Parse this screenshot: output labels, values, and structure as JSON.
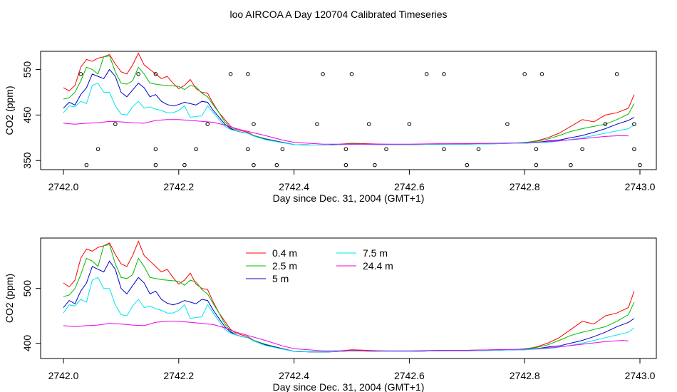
{
  "title": "loo AIRCOA A  Day 120704  Calibrated Timeseries",
  "colors": {
    "h04": "#ff0000",
    "h25": "#00bb00",
    "h5": "#0000cc",
    "h75": "#00e5ee",
    "h244": "#ee00ee",
    "axis": "#000000"
  },
  "chart_data": [
    {
      "type": "line",
      "xlabel": "Day since Dec. 31, 2004 (GMT+1)",
      "ylabel": "CO2 (ppm)",
      "xlim": [
        2742.0,
        2743.0
      ],
      "ylim": [
        330,
        590
      ],
      "xticks": [
        2742.0,
        2742.2,
        2742.4,
        2742.6,
        2742.8,
        2743.0
      ],
      "xtick_labels": [
        "2742.0",
        "2742.2",
        "2742.4",
        "2742.6",
        "2742.8",
        "2743.0"
      ],
      "yticks": [
        350,
        450,
        550
      ],
      "ytick_labels": [
        "350",
        "450",
        "550"
      ],
      "grid": false,
      "legend": "none",
      "series": [
        {
          "color": "#ff0000",
          "x": [
            2742.0,
            2742.01,
            2742.02,
            2742.03,
            2742.04,
            2742.05,
            2742.06,
            2742.07,
            2742.08,
            2742.09,
            2742.1,
            2742.11,
            2742.12,
            2742.13,
            2742.14,
            2742.15,
            2742.16,
            2742.17,
            2742.18,
            2742.19,
            2742.2,
            2742.21,
            2742.22,
            2742.23,
            2742.24,
            2742.25,
            2742.26,
            2742.27,
            2742.28,
            2742.29,
            2742.3,
            2742.31,
            2742.32,
            2742.33,
            2742.35,
            2742.38,
            2742.4,
            2742.43,
            2742.46,
            2742.48,
            2742.5,
            2742.55,
            2742.6,
            2742.65,
            2742.7,
            2742.75,
            2742.78,
            2742.8,
            2742.82,
            2742.84,
            2742.86,
            2742.88,
            2742.9,
            2742.92,
            2742.94,
            2742.96,
            2742.98,
            2742.99
          ],
          "y": [
            510,
            503,
            515,
            555,
            572,
            568,
            575,
            578,
            583,
            562,
            545,
            540,
            560,
            586,
            560,
            550,
            540,
            530,
            535,
            520,
            508,
            515,
            528,
            508,
            500,
            498,
            475,
            455,
            440,
            425,
            418,
            415,
            412,
            405,
            398,
            390,
            385,
            384,
            384,
            386,
            388,
            386,
            385,
            386,
            387,
            388,
            388,
            389,
            393,
            400,
            410,
            425,
            440,
            435,
            450,
            455,
            465,
            495
          ]
        },
        {
          "color": "#00bb00",
          "x": [
            2742.0,
            2742.01,
            2742.02,
            2742.03,
            2742.04,
            2742.05,
            2742.06,
            2742.07,
            2742.08,
            2742.09,
            2742.1,
            2742.11,
            2742.12,
            2742.13,
            2742.14,
            2742.15,
            2742.16,
            2742.17,
            2742.18,
            2742.19,
            2742.2,
            2742.21,
            2742.22,
            2742.23,
            2742.24,
            2742.25,
            2742.26,
            2742.27,
            2742.28,
            2742.29,
            2742.3,
            2742.31,
            2742.32,
            2742.33,
            2742.35,
            2742.38,
            2742.4,
            2742.43,
            2742.46,
            2742.48,
            2742.5,
            2742.55,
            2742.6,
            2742.65,
            2742.7,
            2742.75,
            2742.78,
            2742.8,
            2742.82,
            2742.84,
            2742.86,
            2742.88,
            2742.9,
            2742.92,
            2742.94,
            2742.96,
            2742.98,
            2742.99
          ],
          "y": [
            485,
            488,
            500,
            525,
            555,
            550,
            540,
            578,
            580,
            545,
            520,
            518,
            525,
            555,
            540,
            520,
            518,
            516,
            515,
            514,
            513,
            506,
            515,
            512,
            498,
            490,
            472,
            455,
            435,
            422,
            415,
            412,
            410,
            405,
            398,
            390,
            385,
            384,
            384,
            385,
            387,
            385,
            385,
            386,
            387,
            388,
            388,
            390,
            392,
            397,
            405,
            414,
            420,
            425,
            430,
            440,
            452,
            475
          ]
        },
        {
          "color": "#0000cc",
          "x": [
            2742.0,
            2742.01,
            2742.02,
            2742.03,
            2742.04,
            2742.05,
            2742.06,
            2742.07,
            2742.08,
            2742.09,
            2742.1,
            2742.11,
            2742.12,
            2742.13,
            2742.14,
            2742.15,
            2742.16,
            2742.17,
            2742.18,
            2742.19,
            2742.2,
            2742.21,
            2742.22,
            2742.23,
            2742.24,
            2742.25,
            2742.26,
            2742.27,
            2742.28,
            2742.29,
            2742.3,
            2742.31,
            2742.32,
            2742.33,
            2742.35,
            2742.38,
            2742.4,
            2742.43,
            2742.46,
            2742.48,
            2742.5,
            2742.55,
            2742.6,
            2742.65,
            2742.7,
            2742.75,
            2742.78,
            2742.8,
            2742.82,
            2742.84,
            2742.86,
            2742.88,
            2742.9,
            2742.92,
            2742.94,
            2742.96,
            2742.98,
            2742.99
          ],
          "y": [
            465,
            478,
            472,
            495,
            510,
            540,
            535,
            530,
            550,
            535,
            500,
            490,
            505,
            520,
            510,
            490,
            495,
            480,
            473,
            470,
            473,
            478,
            475,
            472,
            480,
            478,
            460,
            445,
            430,
            420,
            415,
            412,
            410,
            404,
            397,
            390,
            385,
            384,
            384,
            385,
            386,
            385,
            385,
            386,
            386,
            387,
            388,
            388,
            390,
            393,
            395,
            400,
            405,
            412,
            420,
            430,
            438,
            445
          ]
        },
        {
          "color": "#00e5ee",
          "x": [
            2742.0,
            2742.01,
            2742.02,
            2742.03,
            2742.04,
            2742.05,
            2742.06,
            2742.07,
            2742.08,
            2742.09,
            2742.1,
            2742.11,
            2742.12,
            2742.13,
            2742.14,
            2742.15,
            2742.16,
            2742.17,
            2742.18,
            2742.19,
            2742.2,
            2742.21,
            2742.22,
            2742.23,
            2742.24,
            2742.25,
            2742.26,
            2742.27,
            2742.28,
            2742.29,
            2742.3,
            2742.31,
            2742.32,
            2742.33,
            2742.35,
            2742.38,
            2742.4,
            2742.43,
            2742.46,
            2742.48,
            2742.5,
            2742.55,
            2742.6,
            2742.65,
            2742.7,
            2742.75,
            2742.78,
            2742.8,
            2742.82,
            2742.84,
            2742.86,
            2742.88,
            2742.9,
            2742.92,
            2742.94,
            2742.96,
            2742.98,
            2742.99
          ],
          "y": [
            455,
            470,
            468,
            480,
            475,
            515,
            520,
            500,
            500,
            470,
            452,
            450,
            468,
            480,
            465,
            468,
            463,
            460,
            455,
            455,
            460,
            470,
            445,
            447,
            448,
            470,
            455,
            440,
            425,
            418,
            415,
            412,
            410,
            404,
            396,
            389,
            385,
            384,
            384,
            385,
            386,
            385,
            385,
            386,
            386,
            387,
            388,
            388,
            389,
            390,
            393,
            396,
            400,
            405,
            410,
            415,
            420,
            428
          ]
        },
        {
          "color": "#ee00ee",
          "x": [
            2742.0,
            2742.02,
            2742.04,
            2742.06,
            2742.08,
            2742.1,
            2742.12,
            2742.14,
            2742.16,
            2742.18,
            2742.2,
            2742.22,
            2742.24,
            2742.26,
            2742.28,
            2742.3,
            2742.32,
            2742.35,
            2742.38,
            2742.4,
            2742.45,
            2742.5,
            2742.55,
            2742.6,
            2742.65,
            2742.7,
            2742.75,
            2742.8,
            2742.85,
            2742.9,
            2742.94,
            2742.97,
            2742.98
          ],
          "y": [
            432,
            430,
            432,
            433,
            436,
            435,
            433,
            432,
            438,
            440,
            440,
            438,
            436,
            434,
            428,
            420,
            414,
            405,
            395,
            390,
            386,
            386,
            386,
            386,
            387,
            387,
            388,
            389,
            392,
            398,
            403,
            405,
            404
          ]
        }
      ],
      "markers": [
        {
          "x": [
            2742.03,
            2742.09,
            2742.13,
            2742.16,
            2742.25,
            2742.29,
            2742.32,
            2742.33,
            2742.44,
            2742.45,
            2742.5,
            2742.53,
            2742.6,
            2742.63,
            2742.66,
            2742.77,
            2742.8,
            2742.83,
            2742.94,
            2742.96,
            2742.99
          ],
          "y": [
            540,
            430,
            540,
            540,
            430,
            540,
            540,
            430,
            430,
            540,
            540,
            430,
            430,
            540,
            540,
            430,
            540,
            540,
            430,
            540,
            430
          ]
        },
        {
          "x": [
            2742.04,
            2742.06,
            2742.16,
            2742.21,
            2742.23,
            2742.32,
            2742.38,
            2742.49,
            2742.56,
            2742.66,
            2742.72,
            2742.82,
            2742.9,
            2742.99
          ],
          "y": [
            340,
            375,
            375,
            340,
            375,
            375,
            375,
            375,
            375,
            375,
            375,
            375,
            375,
            375
          ]
        },
        {
          "x": [
            2742.16,
            2742.33,
            2742.37,
            2742.49,
            2742.54,
            2742.7,
            2742.82,
            2742.88,
            2743.0
          ],
          "y": [
            340,
            340,
            340,
            340,
            340,
            340,
            340,
            340,
            340
          ]
        }
      ]
    },
    {
      "type": "line",
      "xlabel": "Day since Dec. 31, 2004 (GMT+1)",
      "ylabel": "CO2 (ppm)",
      "xlim": [
        2742.0,
        2743.0
      ],
      "ylim": [
        372,
        592
      ],
      "xticks": [
        2742.0,
        2742.2,
        2742.4,
        2742.6,
        2742.8,
        2743.0
      ],
      "xtick_labels": [
        "2742.0",
        "2742.2",
        "2742.4",
        "2742.6",
        "2742.8",
        "2743.0"
      ],
      "yticks": [
        400,
        500
      ],
      "ytick_labels": [
        "400",
        "500"
      ],
      "grid": false,
      "legend": "top-center",
      "legend_entries": [
        {
          "label": "0.4 m",
          "color": "#ff0000"
        },
        {
          "label": "2.5 m",
          "color": "#00bb00"
        },
        {
          "label": "5 m",
          "color": "#0000cc"
        },
        {
          "label": "7.5 m",
          "color": "#00e5ee"
        },
        {
          "label": "24.4 m",
          "color": "#ee00ee"
        }
      ]
    }
  ]
}
